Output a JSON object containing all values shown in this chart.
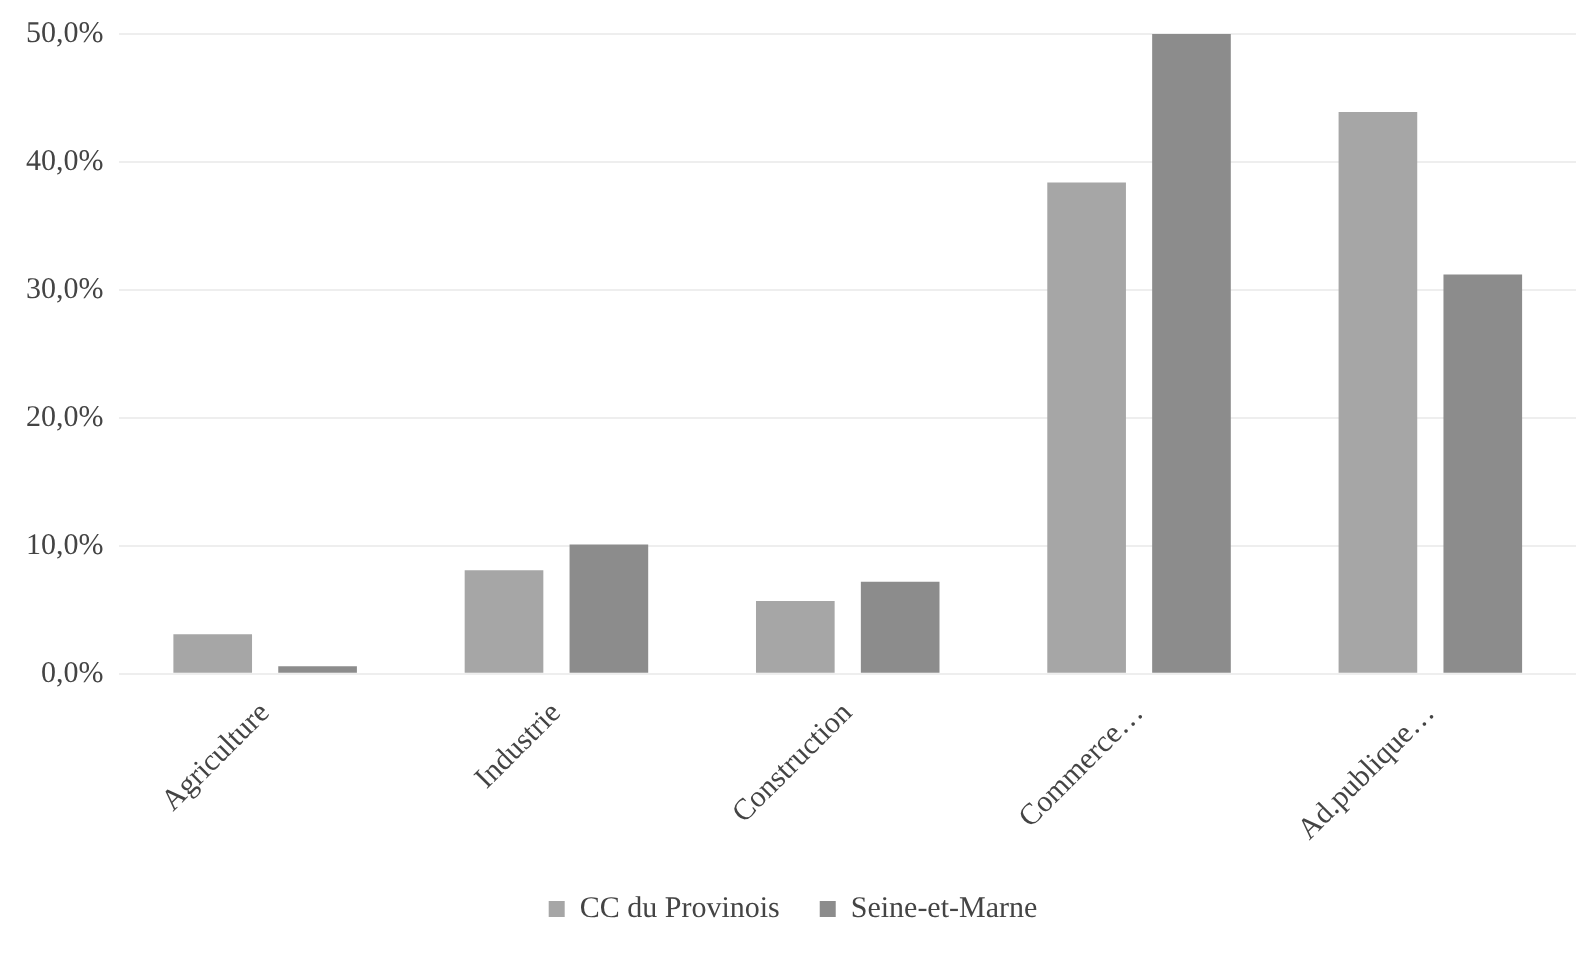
{
  "chart_data": {
    "type": "bar",
    "categories": [
      "Agriculture",
      "Industrie",
      "Construction",
      "Commerce…",
      "Ad.publique…"
    ],
    "series": [
      {
        "name": "CC du Provinois",
        "color": "#a6a6a6",
        "values": [
          3.1,
          8.1,
          5.7,
          38.4,
          43.9
        ]
      },
      {
        "name": "Seine-et-Marne",
        "color": "#8c8c8c",
        "values": [
          0.6,
          10.1,
          7.2,
          50.0,
          31.2
        ]
      }
    ],
    "ylim": [
      0,
      50
    ],
    "yticks": [
      {
        "value": 0,
        "label": "0,0%"
      },
      {
        "value": 10,
        "label": "10,0%"
      },
      {
        "value": 20,
        "label": "20,0%"
      },
      {
        "value": 30,
        "label": "30,0%"
      },
      {
        "value": 40,
        "label": "40,0%"
      },
      {
        "value": 50,
        "label": "50,0%"
      }
    ],
    "grid": "y",
    "legend": "bottom"
  }
}
